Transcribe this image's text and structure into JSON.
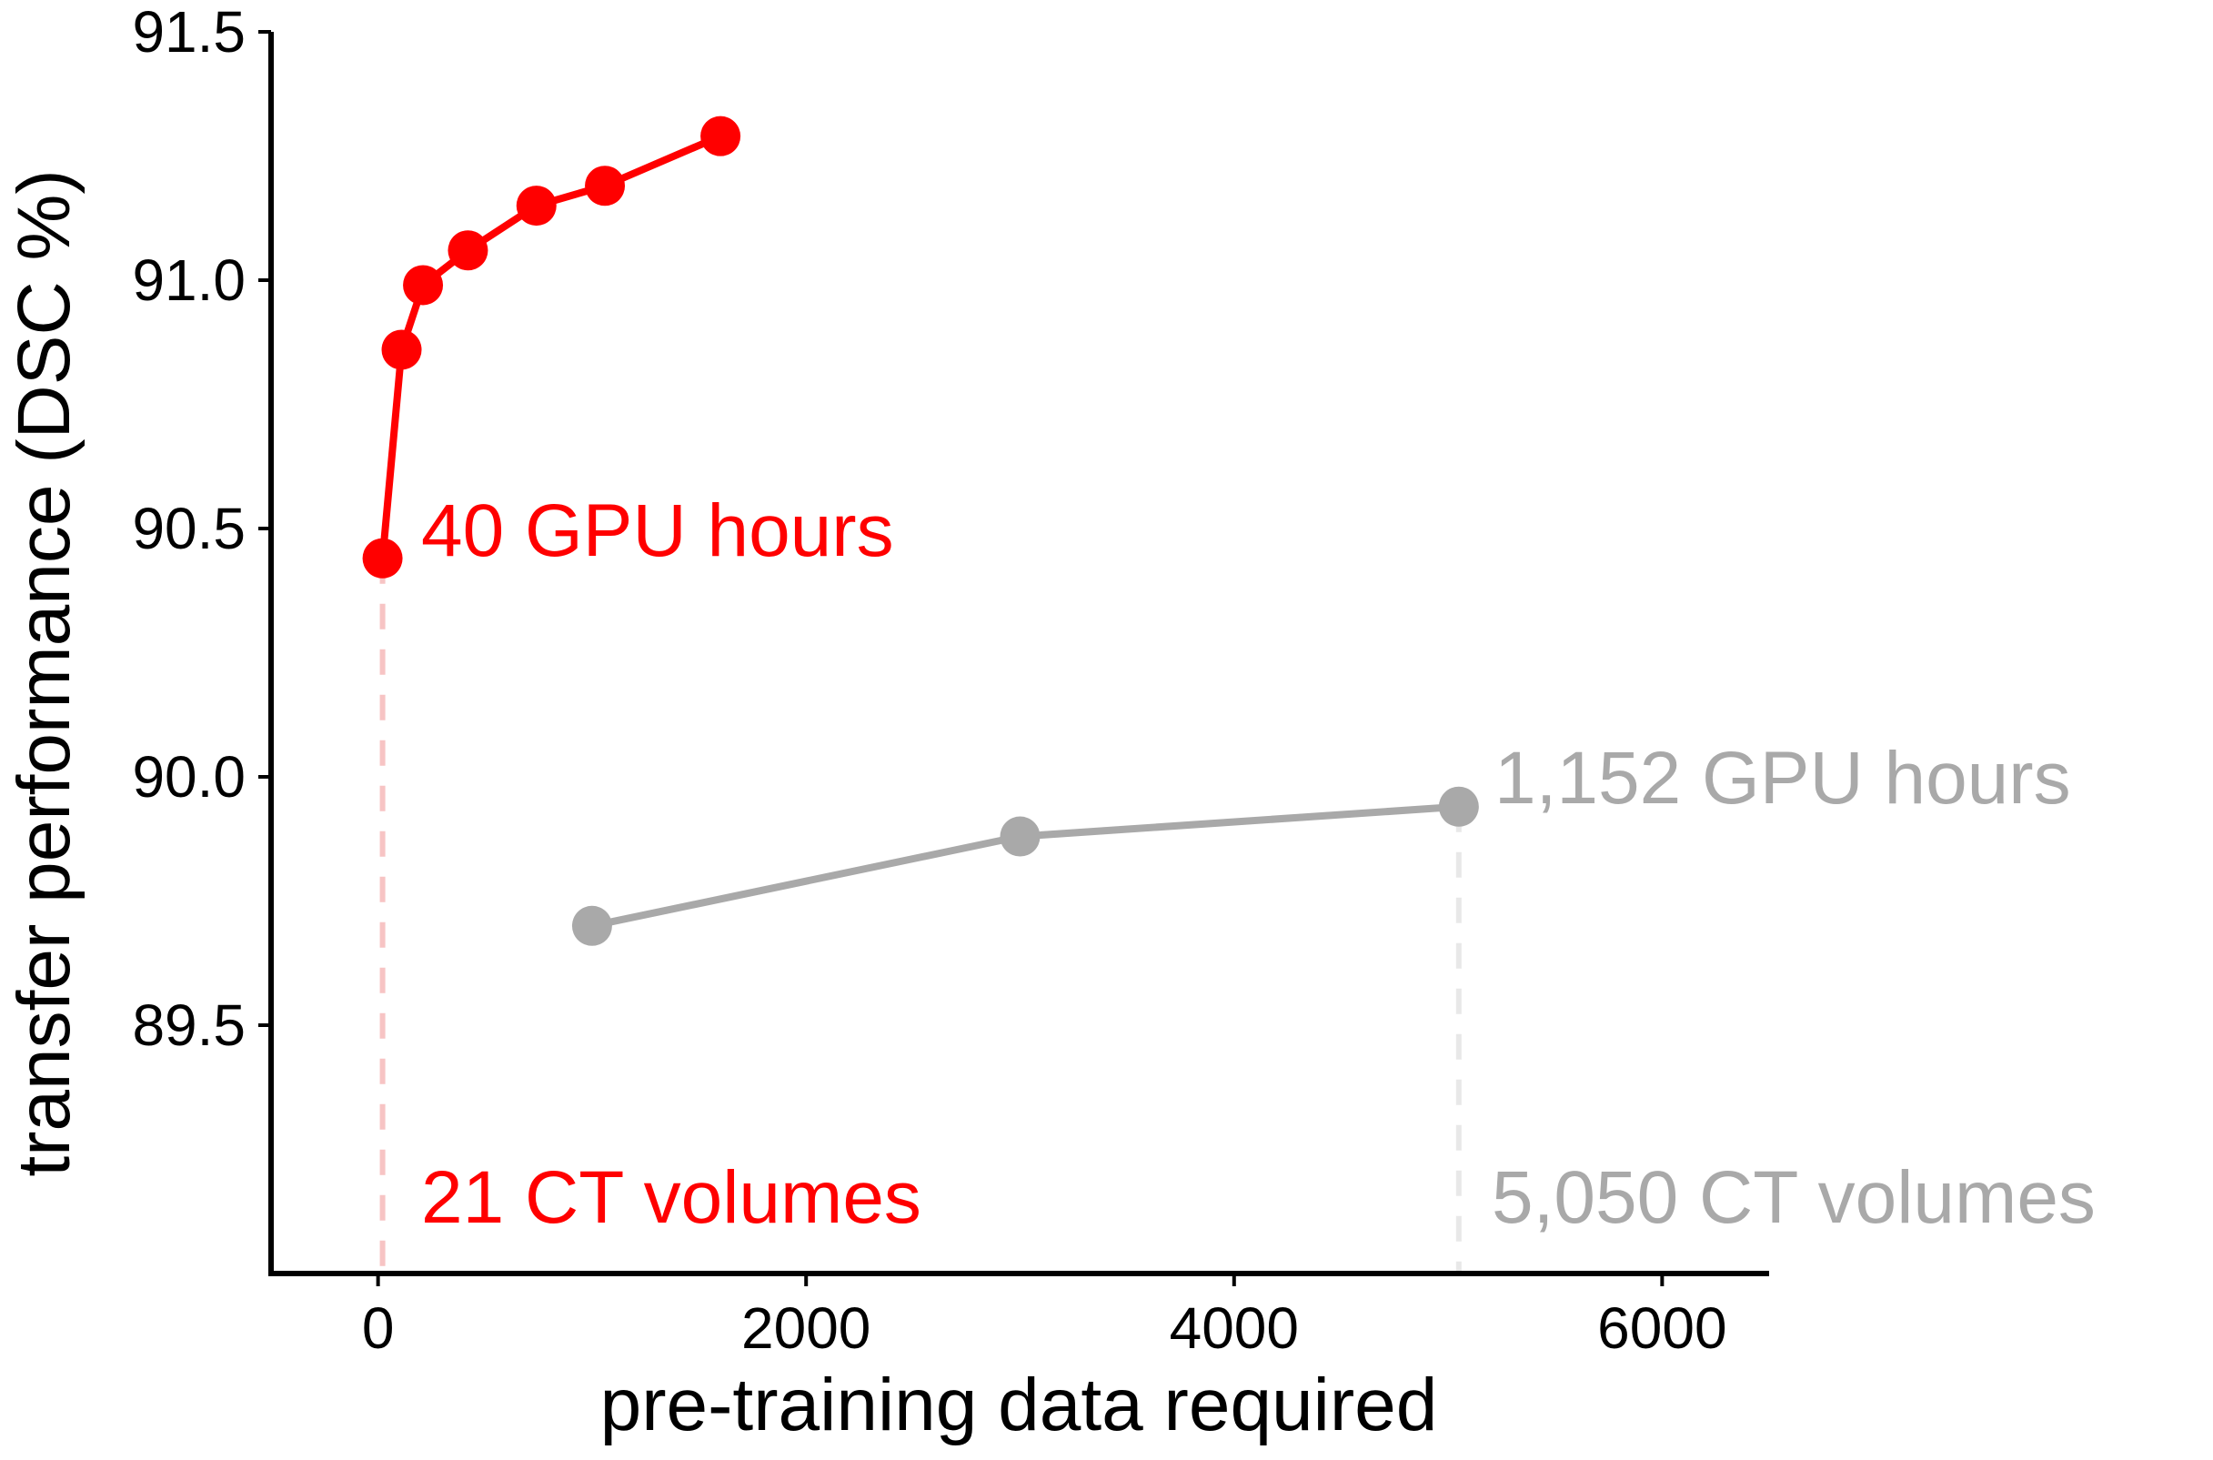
{
  "chart_data": {
    "type": "line",
    "xlabel": "pre-training data required",
    "ylabel": "transfer performance (DSC %)",
    "xlim": [
      -500,
      6500
    ],
    "ylim": [
      89.0,
      91.5
    ],
    "x_ticks": [
      0,
      2000,
      4000,
      6000
    ],
    "x_tick_labels": [
      "0",
      "2000",
      "4000",
      "6000"
    ],
    "y_ticks": [
      89.5,
      90.0,
      90.5,
      91.0,
      91.5
    ],
    "y_tick_labels": [
      "89.5",
      "90.0",
      "90.5",
      "91.0",
      "91.5"
    ],
    "grid": false,
    "series": [
      {
        "color": "#ff0000",
        "x": [
          21,
          110,
          210,
          420,
          740,
          1060,
          1600
        ],
        "y": [
          90.44,
          90.86,
          90.99,
          91.06,
          91.15,
          91.19,
          91.29
        ]
      },
      {
        "color": "#a9a9a9",
        "x": [
          1000,
          3000,
          5050
        ],
        "y": [
          89.7,
          89.88,
          89.94
        ]
      }
    ],
    "reference_lines": [
      {
        "x": 21,
        "color": "#f7c4c4"
      },
      {
        "x": 5050,
        "color": "#e8e8e8"
      }
    ],
    "annotations": {
      "red_gpu": "40 GPU hours",
      "red_volumes": "21 CT volumes",
      "gray_gpu": "1,152 GPU hours",
      "gray_volumes": "5,050 CT volumes"
    }
  }
}
